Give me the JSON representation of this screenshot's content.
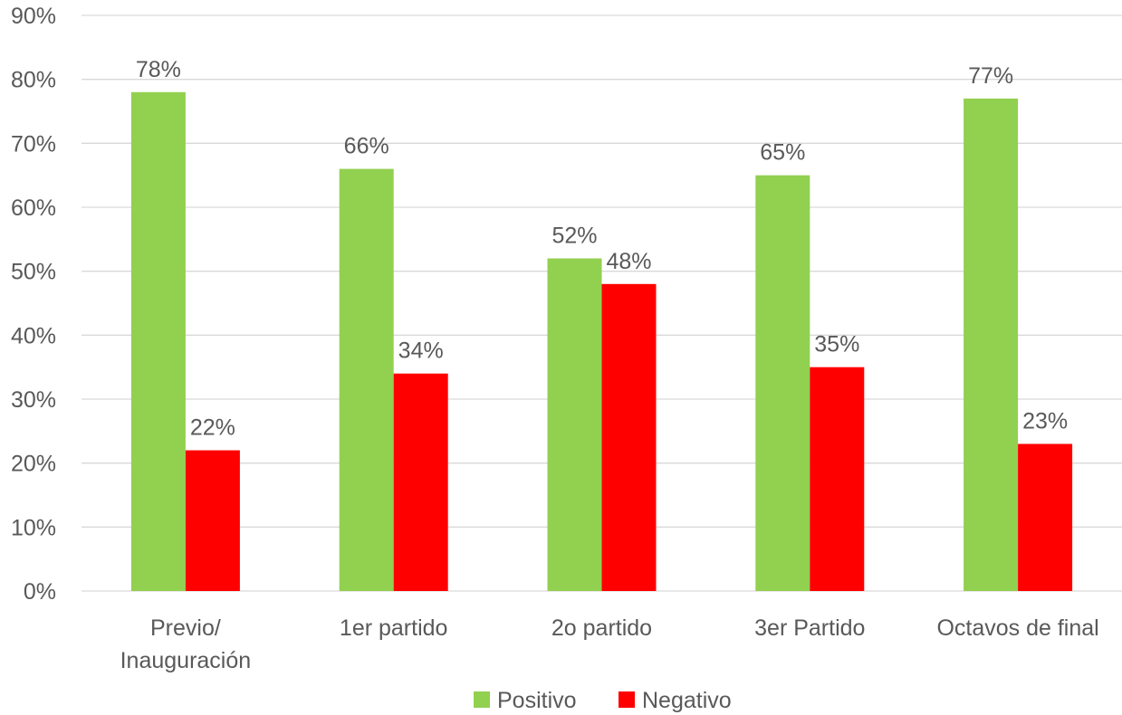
{
  "chart_data": {
    "type": "bar",
    "categories": [
      [
        "Previo/",
        "Inauguración"
      ],
      [
        "1er partido"
      ],
      [
        "2o partido"
      ],
      [
        "3er Partido"
      ],
      [
        "Octavos de final"
      ]
    ],
    "series": [
      {
        "name": "Positivo",
        "color": "#92d050",
        "values": [
          78,
          66,
          52,
          65,
          77
        ],
        "labels": [
          "78%",
          "66%",
          "52%",
          "65%",
          "77%"
        ]
      },
      {
        "name": "Negativo",
        "color": "#ff0000",
        "values": [
          22,
          34,
          48,
          35,
          23
        ],
        "labels": [
          "22%",
          "34%",
          "48%",
          "35%",
          "23%"
        ]
      }
    ],
    "ylim": [
      0,
      90
    ],
    "yticks": [
      0,
      10,
      20,
      30,
      40,
      50,
      60,
      70,
      80,
      90
    ],
    "ytick_labels": [
      "0%",
      "10%",
      "20%",
      "30%",
      "40%",
      "50%",
      "60%",
      "70%",
      "80%",
      "90%"
    ],
    "grid": true,
    "legend": "bottom"
  }
}
